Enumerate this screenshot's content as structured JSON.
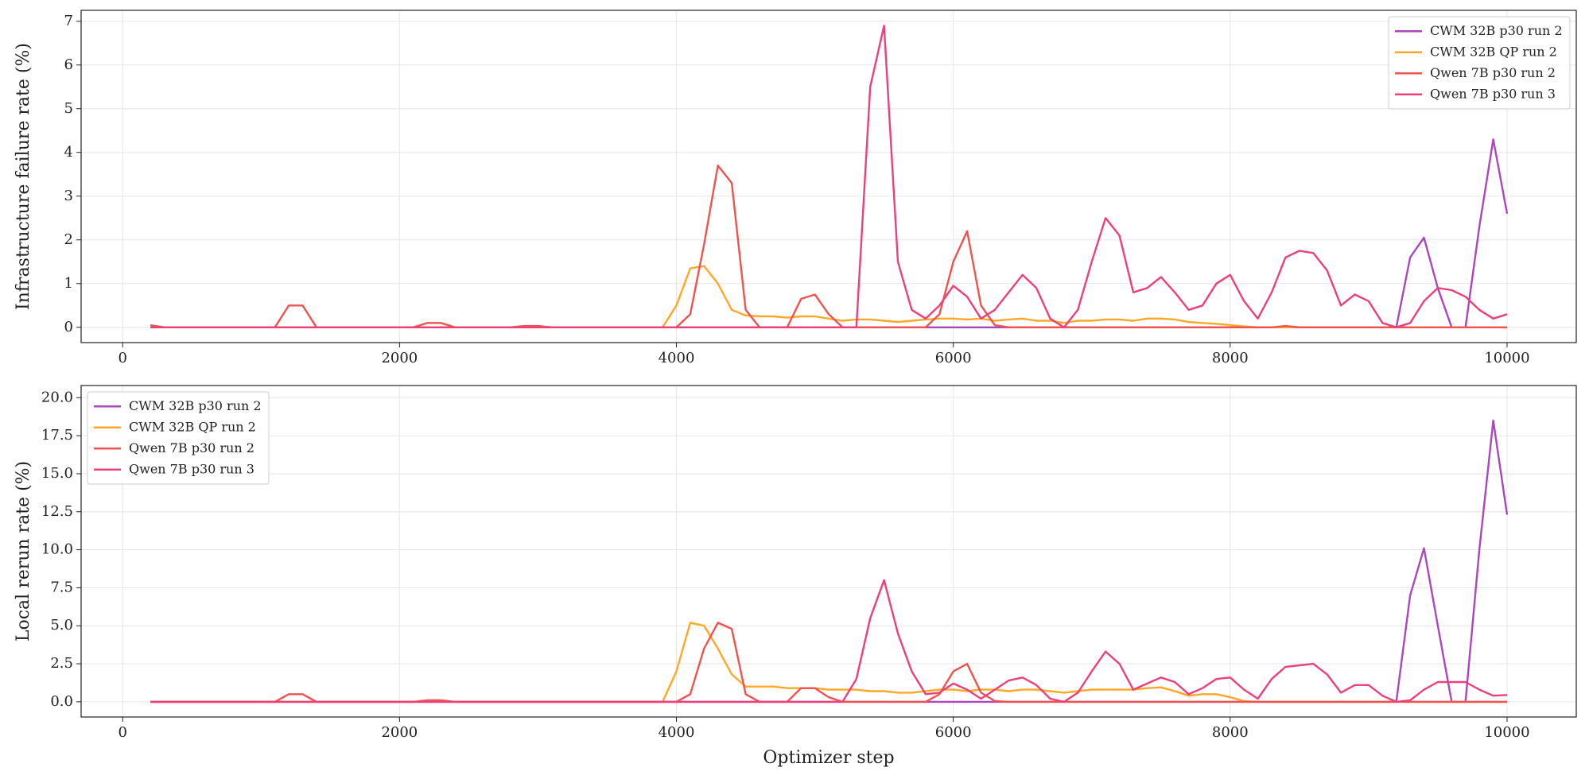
{
  "chart_data": [
    {
      "type": "line",
      "ylabel": "Infrastructure failure rate (%)",
      "x": [
        200,
        300,
        400,
        500,
        600,
        700,
        800,
        900,
        1000,
        1100,
        1200,
        1300,
        1400,
        1500,
        1600,
        1700,
        1800,
        1900,
        2000,
        2100,
        2200,
        2300,
        2400,
        2500,
        2600,
        2700,
        2800,
        2900,
        3000,
        3100,
        3200,
        3300,
        3400,
        3500,
        3600,
        3700,
        3800,
        3900,
        4000,
        4100,
        4200,
        4300,
        4400,
        4500,
        4600,
        4700,
        4800,
        4900,
        5000,
        5100,
        5200,
        5300,
        5400,
        5500,
        5600,
        5700,
        5800,
        5900,
        6000,
        6100,
        6200,
        6300,
        6400,
        6500,
        6600,
        6700,
        6800,
        6900,
        7000,
        7100,
        7200,
        7300,
        7400,
        7500,
        7600,
        7700,
        7800,
        7900,
        8000,
        8100,
        8200,
        8300,
        8400,
        8500,
        8600,
        8700,
        8800,
        8900,
        9000,
        9100,
        9200,
        9300,
        9400,
        9500,
        9600,
        9700,
        9800,
        9900,
        10000
      ],
      "series": [
        {
          "name": "CWM 32B p30 run 2",
          "color": "#ab47bc",
          "values": [
            0,
            0,
            0,
            0,
            0,
            0,
            0,
            0,
            0,
            0,
            0,
            0,
            0,
            0,
            0,
            0,
            0,
            0,
            0,
            0,
            0,
            0,
            0,
            0,
            0,
            0,
            0,
            0,
            0,
            0,
            0,
            0,
            0,
            0,
            0,
            0,
            0,
            0,
            0,
            0,
            0,
            0,
            0,
            0,
            0,
            0,
            0,
            0,
            0,
            0,
            0,
            0,
            0,
            0,
            0,
            0,
            0,
            0,
            0,
            0,
            0,
            0,
            0,
            0,
            0,
            0,
            0,
            0,
            0,
            0,
            0,
            0,
            0,
            0,
            0,
            0,
            0,
            0,
            0,
            0,
            0,
            0,
            0,
            0,
            0,
            0,
            0,
            0,
            0,
            0,
            0,
            1.6,
            2.05,
            0.9,
            0,
            0,
            2.3,
            4.3,
            2.6
          ]
        },
        {
          "name": "CWM 32B QP run 2",
          "color": "#ffa726",
          "values": [
            0,
            0,
            0,
            0,
            0,
            0,
            0,
            0,
            0,
            0,
            0,
            0,
            0,
            0,
            0,
            0,
            0,
            0,
            0,
            0,
            0,
            0,
            0,
            0,
            0,
            0,
            0,
            0,
            0,
            0,
            0,
            0,
            0,
            0,
            0,
            0,
            0,
            0,
            0.5,
            1.35,
            1.4,
            1.0,
            0.4,
            0.27,
            0.25,
            0.25,
            0.22,
            0.25,
            0.25,
            0.2,
            0.15,
            0.18,
            0.18,
            0.15,
            0.12,
            0.15,
            0.18,
            0.2,
            0.2,
            0.18,
            0.2,
            0.15,
            0.18,
            0.2,
            0.15,
            0.15,
            0.1,
            0.15,
            0.15,
            0.18,
            0.18,
            0.15,
            0.2,
            0.2,
            0.18,
            0.12,
            0.1,
            0.08,
            0.05,
            0.02,
            0,
            0,
            0,
            0,
            0,
            0,
            0,
            0,
            0,
            0,
            0,
            0,
            0,
            0,
            0,
            0,
            0,
            0,
            0
          ]
        },
        {
          "name": "Qwen 7B p30 run 2",
          "color": "#ef5350",
          "values": [
            0.05,
            0,
            0,
            0,
            0,
            0,
            0,
            0,
            0,
            0,
            0.5,
            0.5,
            0,
            0,
            0,
            0,
            0,
            0,
            0,
            0,
            0.1,
            0.1,
            0,
            0,
            0,
            0,
            0,
            0.03,
            0.03,
            0,
            0,
            0,
            0,
            0,
            0,
            0,
            0,
            0,
            0,
            0.3,
            1.9,
            3.7,
            3.3,
            0.4,
            0,
            0,
            0,
            0.65,
            0.75,
            0.3,
            0,
            0,
            0,
            0,
            0,
            0,
            0,
            0.3,
            1.5,
            2.2,
            0.5,
            0.05,
            0,
            0,
            0,
            0,
            0,
            0,
            0,
            0,
            0,
            0,
            0,
            0,
            0,
            0,
            0,
            0,
            0,
            0,
            0,
            0,
            0.03,
            0,
            0,
            0,
            0,
            0,
            0,
            0,
            0,
            0,
            0,
            0,
            0,
            0,
            0,
            0,
            0
          ]
        },
        {
          "name": "Qwen 7B p30 run 3",
          "color": "#ec407a",
          "values": [
            0,
            0,
            0,
            0,
            0,
            0,
            0,
            0,
            0,
            0,
            0,
            0,
            0,
            0,
            0,
            0,
            0,
            0,
            0,
            0,
            0,
            0,
            0,
            0,
            0,
            0,
            0,
            0,
            0,
            0,
            0,
            0,
            0,
            0,
            0,
            0,
            0,
            0,
            0,
            0,
            0,
            0,
            0,
            0,
            0,
            0,
            0,
            0,
            0,
            0,
            0,
            0,
            5.5,
            6.9,
            1.5,
            0.4,
            0.2,
            0.5,
            0.95,
            0.7,
            0.2,
            0.4,
            0.8,
            1.2,
            0.9,
            0.2,
            0,
            0.4,
            1.5,
            2.5,
            2.1,
            0.8,
            0.9,
            1.15,
            0.8,
            0.4,
            0.5,
            1.0,
            1.2,
            0.6,
            0.2,
            0.8,
            1.6,
            1.75,
            1.7,
            1.3,
            0.5,
            0.75,
            0.6,
            0.1,
            0,
            0.1,
            0.6,
            0.9,
            0.85,
            0.7,
            0.4,
            0.2,
            0.3
          ]
        }
      ],
      "xlim": [
        -300,
        10500
      ],
      "xticks": [
        0,
        2000,
        4000,
        6000,
        8000,
        10000
      ],
      "ylim": [
        -0.35,
        7.25
      ],
      "yticks": [
        0,
        1,
        2,
        3,
        4,
        5,
        6,
        7
      ],
      "grid": true,
      "legend": "upper right"
    },
    {
      "type": "line",
      "xlabel": "Optimizer step",
      "ylabel": "Local rerun rate (%)",
      "x": [
        200,
        300,
        400,
        500,
        600,
        700,
        800,
        900,
        1000,
        1100,
        1200,
        1300,
        1400,
        1500,
        1600,
        1700,
        1800,
        1900,
        2000,
        2100,
        2200,
        2300,
        2400,
        2500,
        2600,
        2700,
        2800,
        2900,
        3000,
        3100,
        3200,
        3300,
        3400,
        3500,
        3600,
        3700,
        3800,
        3900,
        4000,
        4100,
        4200,
        4300,
        4400,
        4500,
        4600,
        4700,
        4800,
        4900,
        5000,
        5100,
        5200,
        5300,
        5400,
        5500,
        5600,
        5700,
        5800,
        5900,
        6000,
        6100,
        6200,
        6300,
        6400,
        6500,
        6600,
        6700,
        6800,
        6900,
        7000,
        7100,
        7200,
        7300,
        7400,
        7500,
        7600,
        7700,
        7800,
        7900,
        8000,
        8100,
        8200,
        8300,
        8400,
        8500,
        8600,
        8700,
        8800,
        8900,
        9000,
        9100,
        9200,
        9300,
        9400,
        9500,
        9600,
        9700,
        9800,
        9900,
        10000
      ],
      "series": [
        {
          "name": "CWM 32B p30 run 2",
          "color": "#ab47bc",
          "values": [
            0,
            0,
            0,
            0,
            0,
            0,
            0,
            0,
            0,
            0,
            0,
            0,
            0,
            0,
            0,
            0,
            0,
            0,
            0,
            0,
            0,
            0,
            0,
            0,
            0,
            0,
            0,
            0,
            0,
            0,
            0,
            0,
            0,
            0,
            0,
            0,
            0,
            0,
            0,
            0,
            0,
            0,
            0,
            0,
            0,
            0,
            0,
            0,
            0,
            0,
            0,
            0,
            0,
            0,
            0,
            0,
            0,
            0,
            0,
            0,
            0,
            0,
            0,
            0,
            0,
            0,
            0,
            0,
            0,
            0,
            0,
            0,
            0,
            0,
            0,
            0,
            0,
            0,
            0,
            0,
            0,
            0,
            0,
            0,
            0,
            0,
            0,
            0,
            0,
            0,
            0,
            7,
            10.1,
            5,
            0,
            0,
            10,
            18.5,
            12.3
          ]
        },
        {
          "name": "CWM 32B QP run 2",
          "color": "#ffa726",
          "values": [
            0,
            0,
            0,
            0,
            0,
            0,
            0,
            0,
            0,
            0,
            0,
            0,
            0,
            0,
            0,
            0,
            0,
            0,
            0,
            0,
            0,
            0,
            0,
            0,
            0,
            0,
            0,
            0,
            0,
            0,
            0,
            0,
            0,
            0,
            0,
            0,
            0,
            0,
            2.0,
            5.2,
            5.0,
            3.5,
            1.8,
            1.0,
            1.0,
            1.0,
            0.9,
            0.9,
            0.9,
            0.8,
            0.8,
            0.8,
            0.7,
            0.7,
            0.6,
            0.6,
            0.7,
            0.8,
            0.8,
            0.7,
            0.8,
            0.8,
            0.7,
            0.8,
            0.8,
            0.7,
            0.6,
            0.7,
            0.8,
            0.8,
            0.8,
            0.8,
            0.9,
            0.95,
            0.7,
            0.4,
            0.5,
            0.5,
            0.3,
            0.05,
            0,
            0,
            0,
            0,
            0,
            0,
            0,
            0,
            0,
            0,
            0,
            0,
            0,
            0,
            0,
            0,
            0,
            0,
            0
          ]
        },
        {
          "name": "Qwen 7B p30 run 2",
          "color": "#ef5350",
          "values": [
            0,
            0,
            0,
            0,
            0,
            0,
            0,
            0,
            0,
            0,
            0.5,
            0.5,
            0,
            0,
            0,
            0,
            0,
            0,
            0,
            0,
            0.1,
            0.1,
            0,
            0,
            0,
            0,
            0,
            0,
            0,
            0,
            0,
            0,
            0,
            0,
            0,
            0,
            0,
            0,
            0,
            0.5,
            3.5,
            5.2,
            4.8,
            0.5,
            0,
            0,
            0,
            0.9,
            0.9,
            0.3,
            0,
            0,
            0,
            0,
            0,
            0,
            0,
            0.5,
            2.0,
            2.5,
            0.6,
            0.05,
            0,
            0,
            0,
            0,
            0,
            0,
            0,
            0,
            0,
            0,
            0,
            0,
            0,
            0,
            0,
            0,
            0,
            0,
            0,
            0,
            0,
            0,
            0,
            0,
            0,
            0,
            0,
            0,
            0,
            0,
            0,
            0,
            0,
            0,
            0,
            0,
            0
          ]
        },
        {
          "name": "Qwen 7B p30 run 3",
          "color": "#ec407a",
          "values": [
            0,
            0,
            0,
            0,
            0,
            0,
            0,
            0,
            0,
            0,
            0,
            0,
            0,
            0,
            0,
            0,
            0,
            0,
            0,
            0,
            0,
            0,
            0,
            0,
            0,
            0,
            0,
            0,
            0,
            0,
            0,
            0,
            0,
            0,
            0,
            0,
            0,
            0,
            0,
            0,
            0,
            0,
            0,
            0,
            0,
            0,
            0,
            0,
            0,
            0,
            0,
            1.5,
            5.5,
            8.0,
            4.5,
            2.0,
            0.5,
            0.6,
            1.2,
            0.8,
            0.2,
            0.8,
            1.4,
            1.6,
            1.1,
            0.2,
            0,
            0.6,
            2.0,
            3.3,
            2.5,
            0.8,
            1.2,
            1.6,
            1.3,
            0.5,
            0.9,
            1.5,
            1.6,
            0.8,
            0.2,
            1.5,
            2.3,
            2.4,
            2.5,
            1.8,
            0.6,
            1.1,
            1.1,
            0.4,
            0,
            0.1,
            0.8,
            1.3,
            1.3,
            1.3,
            0.8,
            0.4,
            0.45
          ]
        }
      ],
      "xlim": [
        -300,
        10500
      ],
      "xticks": [
        0,
        2000,
        4000,
        6000,
        8000,
        10000
      ],
      "ylim": [
        -1,
        20.8
      ],
      "yticks": [
        {
          "value": 0,
          "label": "0.0"
        },
        {
          "value": 2.5,
          "label": "2.5"
        },
        {
          "value": 5,
          "label": "5.0"
        },
        {
          "value": 7.5,
          "label": "7.5"
        },
        {
          "value": 10,
          "label": "10.0"
        },
        {
          "value": 12.5,
          "label": "12.5"
        },
        {
          "value": 15,
          "label": "15.0"
        },
        {
          "value": 17.5,
          "label": "17.5"
        },
        {
          "value": 20,
          "label": "20.0"
        }
      ],
      "grid": true,
      "legend": "upper left"
    }
  ]
}
